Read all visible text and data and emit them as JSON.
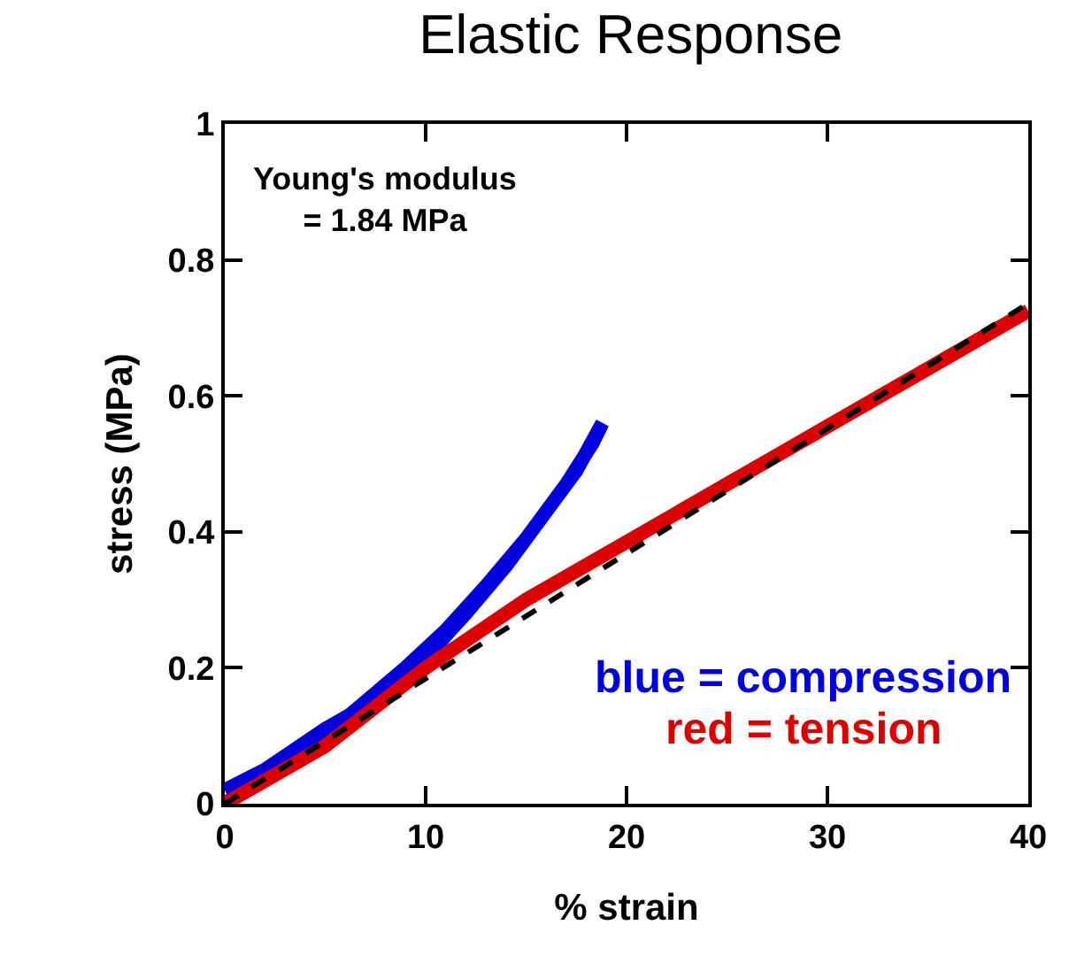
{
  "chart_data": {
    "type": "line",
    "title": "Elastic Response",
    "xlabel": "% strain",
    "ylabel": "stress (MPa)",
    "xlim": [
      0,
      40
    ],
    "xticks": [
      0,
      10,
      20,
      30,
      40
    ],
    "ylim": [
      0,
      1
    ],
    "yticks": [
      0,
      {
        "value": 0.2,
        "label": "0.2"
      },
      {
        "value": 0.4,
        "label": "0.4"
      },
      {
        "value": 0.6,
        "label": "0.6"
      },
      {
        "value": 0.8,
        "label": "0.8"
      },
      1
    ],
    "marker": "none",
    "annotations": [
      "Young's modulus\n= 1.84 MPa",
      "blue = compression",
      "red = tension"
    ],
    "series": [
      {
        "color": "#0000dd",
        "x": [
          0,
          1,
          2,
          3.5,
          5,
          6.5,
          8,
          10,
          12,
          14,
          16,
          17.5,
          18.8,
          18.3,
          17,
          15,
          13,
          11,
          9,
          7,
          5,
          3,
          1.5,
          0
        ],
        "values": [
          0.02,
          0.035,
          0.05,
          0.08,
          0.11,
          0.135,
          0.165,
          0.215,
          0.28,
          0.35,
          0.43,
          0.49,
          0.56,
          0.53,
          0.47,
          0.39,
          0.32,
          0.255,
          0.2,
          0.15,
          0.1,
          0.06,
          0.03,
          0.0
        ]
      },
      {
        "color": "#dd0000",
        "x": [
          0,
          5,
          10,
          15,
          20,
          25,
          30,
          35,
          40
        ],
        "values": [
          0,
          0.085,
          0.2,
          0.3,
          0.385,
          0.47,
          0.555,
          0.64,
          0.725
        ]
      },
      {
        "color": "#000000",
        "line_style": "dashed",
        "x": [
          0,
          40
        ],
        "values": [
          0,
          0.736
        ]
      }
    ]
  }
}
